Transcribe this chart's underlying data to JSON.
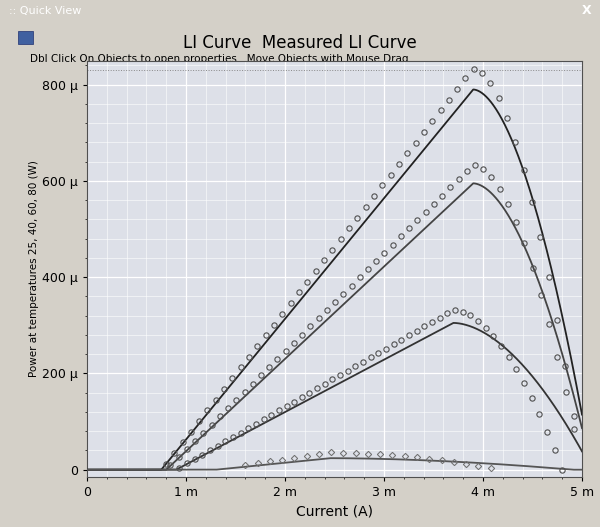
{
  "title": "LI Curve  Measured LI Curve",
  "subtitle": "Dbl Click On Objects to open properties.  Move Objects with Mouse Drag",
  "xlabel": "Current (A)",
  "ylabel": "Power at temperatures 25, 40, 60, 80 (W)",
  "xlim": [
    0,
    0.005
  ],
  "ylim": [
    -1.5e-05,
    0.00085
  ],
  "xticks": [
    0,
    0.001,
    0.002,
    0.003,
    0.004,
    0.005
  ],
  "xtick_labels": [
    "0",
    "1 m",
    "2 m",
    "3 m",
    "4 m",
    "5 m"
  ],
  "yticks": [
    0,
    0.0002,
    0.0004,
    0.0006,
    0.0008
  ],
  "ytick_labels": [
    "0",
    "200 μ",
    "400 μ",
    "600 μ",
    "800 μ"
  ],
  "window_bar_color": "#0a246a",
  "window_bg_color": "#d4d0c8",
  "plot_bg_color": "#dde0e8",
  "grid_color": "#ffffff",
  "curves": [
    {
      "I_th": 0.00075,
      "I_peak": 0.0039,
      "P_peak": 0.00079,
      "I_end": 0.0051,
      "color": "#222222",
      "meas_scale": 1.055,
      "meas_end": 0.005
    },
    {
      "I_th": 0.0008,
      "I_peak": 0.0039,
      "P_peak": 0.000595,
      "I_end": 0.0051,
      "color": "#444444",
      "meas_scale": 1.065,
      "meas_end": 0.005
    },
    {
      "I_th": 0.0009,
      "I_peak": 0.0037,
      "P_peak": 0.000305,
      "I_end": 0.0051,
      "color": "#333333",
      "meas_scale": 1.09,
      "meas_end": 0.0048
    },
    {
      "I_th": 0.0013,
      "I_peak": 0.00245,
      "P_peak": 2.4e-05,
      "I_end": 0.0049,
      "color": "#555555",
      "meas_scale": 1.5,
      "meas_end": 0.0042
    }
  ]
}
